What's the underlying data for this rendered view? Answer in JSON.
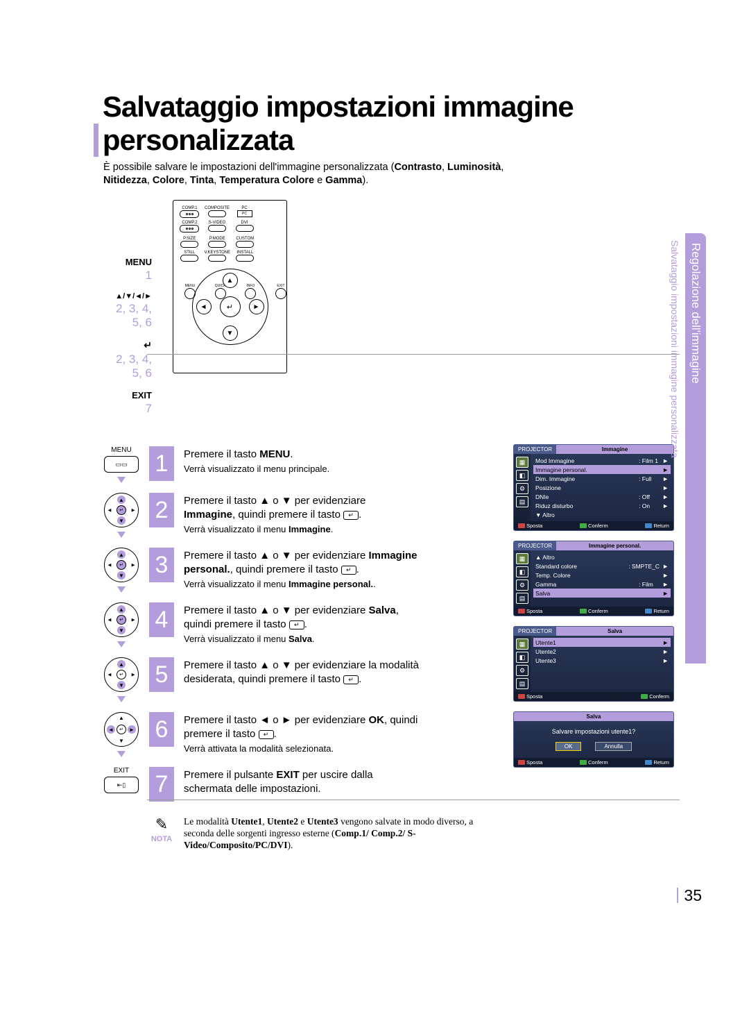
{
  "title": "Salvataggio impostazioni immagine personalizzata",
  "intro": {
    "line1_a": "È possibile salvare le impostazioni dell'immagine personalizzata (",
    "line1_b": "Contrasto",
    "line1_c": ", ",
    "line1_d": "Luminosità",
    "line1_e": ",",
    "line2_a": "Nitidezza",
    "line2_b": ", ",
    "line2_c": "Colore",
    "line2_d": ", ",
    "line2_e": "Tinta",
    "line2_f": ", ",
    "line2_g": "Temperatura Colore",
    "line2_h": " e ",
    "line2_i": "Gamma",
    "line2_j": ")."
  },
  "labels": {
    "menu": "MENU",
    "menu_n": "1",
    "nav": "▲/▼/◄/►",
    "nav_n": "2, 3, 4, 5, 6",
    "enter": "↵",
    "enter_n": "2, 3, 4, 5, 6",
    "exit": "EXIT",
    "exit_n": "7"
  },
  "remote": {
    "row1": [
      "COMP.1",
      "COMPOSITE",
      "PC"
    ],
    "row2": [
      "COMP.2",
      "S-VIDEO",
      "DVI"
    ],
    "row3": [
      "P.SIZE",
      "P.MODE",
      "CUSTOM"
    ],
    "row4": [
      "STILL",
      "V.KEYSTONE",
      "INSTALL"
    ],
    "corners": [
      "MENU",
      "QUICK",
      "INFO",
      "EXIT"
    ]
  },
  "icon_menu": "MENU",
  "icon_exit": "EXIT",
  "steps": [
    {
      "n": "1",
      "main_a": "Premere il tasto ",
      "main_b": "MENU",
      "main_c": ".",
      "sub": "Verrà visualizzato il menu principale.",
      "icon": "menu"
    },
    {
      "n": "2",
      "main_a": "Premere il tasto ▲ o ▼ per evidenziare ",
      "main_b": "Immagine",
      "main_c": ", quindi premere il tasto ",
      "enter": true,
      "main_d": ".",
      "sub_a": "Verrà visualizzato il menu ",
      "sub_b": "Immagine",
      "sub_c": ".",
      "icon": "dpad-v"
    },
    {
      "n": "3",
      "main_a": "Premere il tasto ▲ o ▼ per evidenziare ",
      "main_b": "Immagine personal.",
      "main_c": ", quindi premere il tasto ",
      "enter": true,
      "main_d": ".",
      "sub_a": "Verrà visualizzato il menu ",
      "sub_b": "Immagine personal.",
      "sub_c": ".",
      "icon": "dpad-v"
    },
    {
      "n": "4",
      "main_a": "Premere il tasto ▲ o ▼ per evidenziare ",
      "main_b": "Salva",
      "main_c": ", quindi premere il tasto ",
      "enter": true,
      "main_d": ".",
      "sub_a": "Verrà visualizzato il menu ",
      "sub_b": "Salva",
      "sub_c": ".",
      "icon": "dpad-v"
    },
    {
      "n": "5",
      "main_a": "Premere il tasto ▲ o ▼ per evidenziare la modalità desiderata, quindi premere il tasto ",
      "enter": true,
      "main_d": ".",
      "icon": "dpad-v"
    },
    {
      "n": "6",
      "main_a": "Premere il tasto ◄ o ► per evidenziare ",
      "main_b": "OK",
      "main_c": ", quindi premere il tasto ",
      "enter": true,
      "main_d": ".",
      "sub": "Verrà attivata la modalità selezionata.",
      "icon": "dpad-h"
    },
    {
      "n": "7",
      "main_a": "Premere il pulsante ",
      "main_b": "EXIT",
      "main_c": " per uscire dalla schermata delle impostazioni.",
      "icon": "exit"
    }
  ],
  "osd1": {
    "title_l": "PROJECTOR",
    "title": "Immagine",
    "rows": [
      {
        "l": "Mod Immagine",
        "m": ": Film 1",
        "r": "►"
      },
      {
        "l": "Immagine personal.",
        "m": "",
        "r": "►",
        "hl": true
      },
      {
        "l": "Dim. Immagine",
        "m": ": Full",
        "r": "►"
      },
      {
        "l": "Posizione",
        "m": "",
        "r": "►"
      },
      {
        "l": "DNIe",
        "m": ": Off",
        "r": "►"
      },
      {
        "l": "Riduz disturbo",
        "m": ": On",
        "r": "►"
      },
      {
        "l": "▼ Altro",
        "m": "",
        "r": ""
      }
    ],
    "ftr": {
      "a": "Sposta",
      "b": "Conferm",
      "c": "Return"
    }
  },
  "osd2": {
    "title_l": "PROJECTOR",
    "title": "Immagine personal.",
    "rows": [
      {
        "l": "▲ Altro",
        "m": "",
        "r": ""
      },
      {
        "l": "Standard colore",
        "m": ": SMPTE_C",
        "r": "►"
      },
      {
        "l": "Temp. Colore",
        "m": "",
        "r": "►"
      },
      {
        "l": "Gamma",
        "m": ": Film",
        "r": "►"
      },
      {
        "l": "Salva",
        "m": "",
        "r": "►",
        "hl": true
      }
    ],
    "ftr": {
      "a": "Sposta",
      "b": "Conferm",
      "c": "Return"
    }
  },
  "osd3": {
    "title_l": "PROJECTOR",
    "title": "Salva",
    "rows": [
      {
        "l": "Utente1",
        "m": "",
        "r": "►",
        "hl": true
      },
      {
        "l": "Utente2",
        "m": "",
        "r": "►"
      },
      {
        "l": "Utente3",
        "m": "",
        "r": "►"
      }
    ],
    "ftr": {
      "a": "Sposta",
      "b": "Conferm"
    }
  },
  "osd4": {
    "title": "Salva",
    "q": "Salvare impostazioni utente1?",
    "ok": "OK",
    "cancel": "Annulla",
    "ftr": {
      "a": "Sposta",
      "b": "Conferm",
      "c": "Return"
    }
  },
  "nota": {
    "icon": "✎",
    "label": "NOTA",
    "text_a": "Le modalità ",
    "text_b": "Utente1",
    "text_c": ", ",
    "text_d": "Utente2",
    "text_e": " e ",
    "text_f": "Utente3",
    "text_g": " vengono salvate in modo diverso, a seconda delle sorgenti ingresso esterne (",
    "text_h": "Comp.1/ Comp.2/ S-Video/Composito/PC/DVI",
    "text_i": ")."
  },
  "side": {
    "s1": "Regolazione dell'immagine",
    "s2": "Salvataggio impostazioni immagine personalizzata"
  },
  "pagenum": "35",
  "colors": {
    "accent": "#b39ddb",
    "osd_bg": "#1a2540",
    "osd_hl": "#b39ddb"
  }
}
